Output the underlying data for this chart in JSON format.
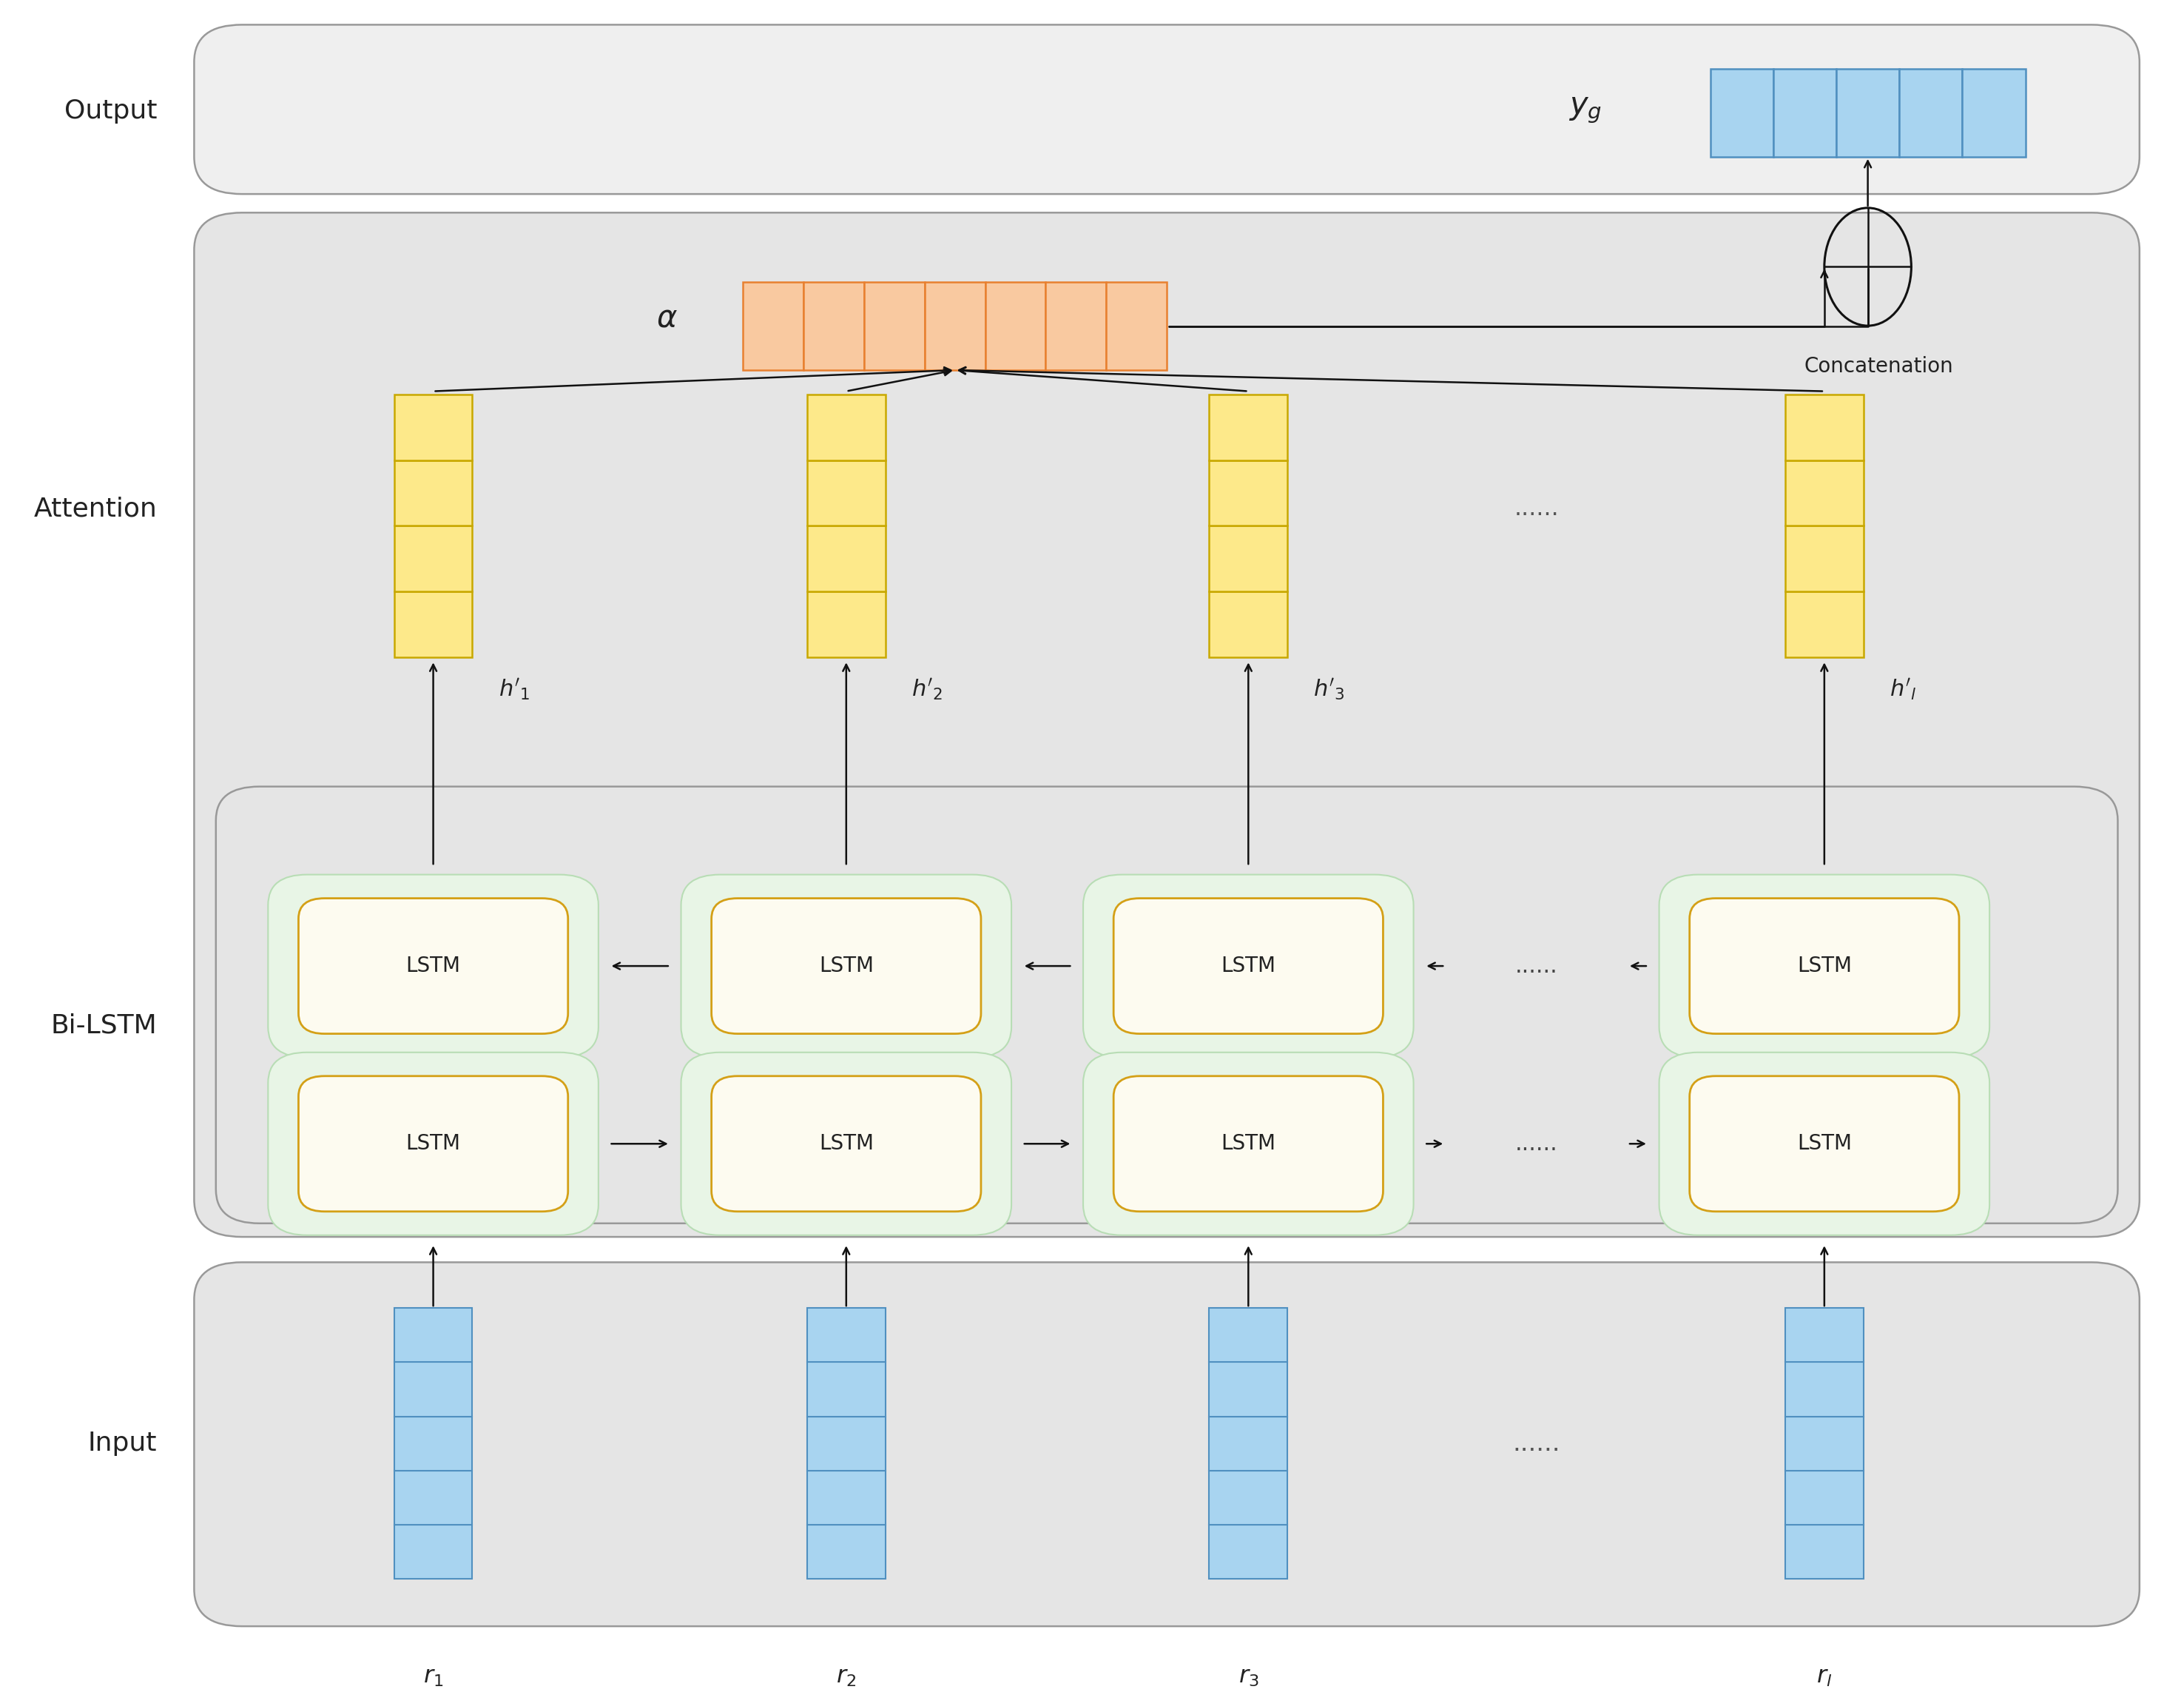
{
  "bg_color": "#ffffff",
  "output_panel_fc": "#efefef",
  "main_panel_fc": "#e5e5e5",
  "panel_ec": "#999999",
  "lstm_outer_fc": "#e8f5e6",
  "lstm_outer_ec": "#b8ddb5",
  "lstm_inner_fc": "#fdfbf0",
  "lstm_inner_ec": "#d4a017",
  "blue_fill": "#a8d4f0",
  "blue_border": "#5090c0",
  "orange_fill": "#f9c9a0",
  "orange_border": "#e88030",
  "yellow_fill": "#fde98a",
  "yellow_border": "#c8a800",
  "label_color": "#222222",
  "cols": [
    0.195,
    0.385,
    0.57,
    0.835
  ],
  "r_labels": [
    "$r_1$",
    "$r_2$",
    "$r_3$",
    "$r_l$"
  ],
  "h_prime_labels": [
    "$h'_1$",
    "$h'_2$",
    "$h'_3$",
    "$h'_l$"
  ],
  "layer_names": [
    "Output",
    "Attention",
    "Bi-LSTM",
    "Input"
  ],
  "dots_label": "......",
  "alpha_label": "$\\alpha$",
  "yg_label": "$y_g$",
  "concat_label": "Concatenation",
  "lstm_label": "LSTM"
}
